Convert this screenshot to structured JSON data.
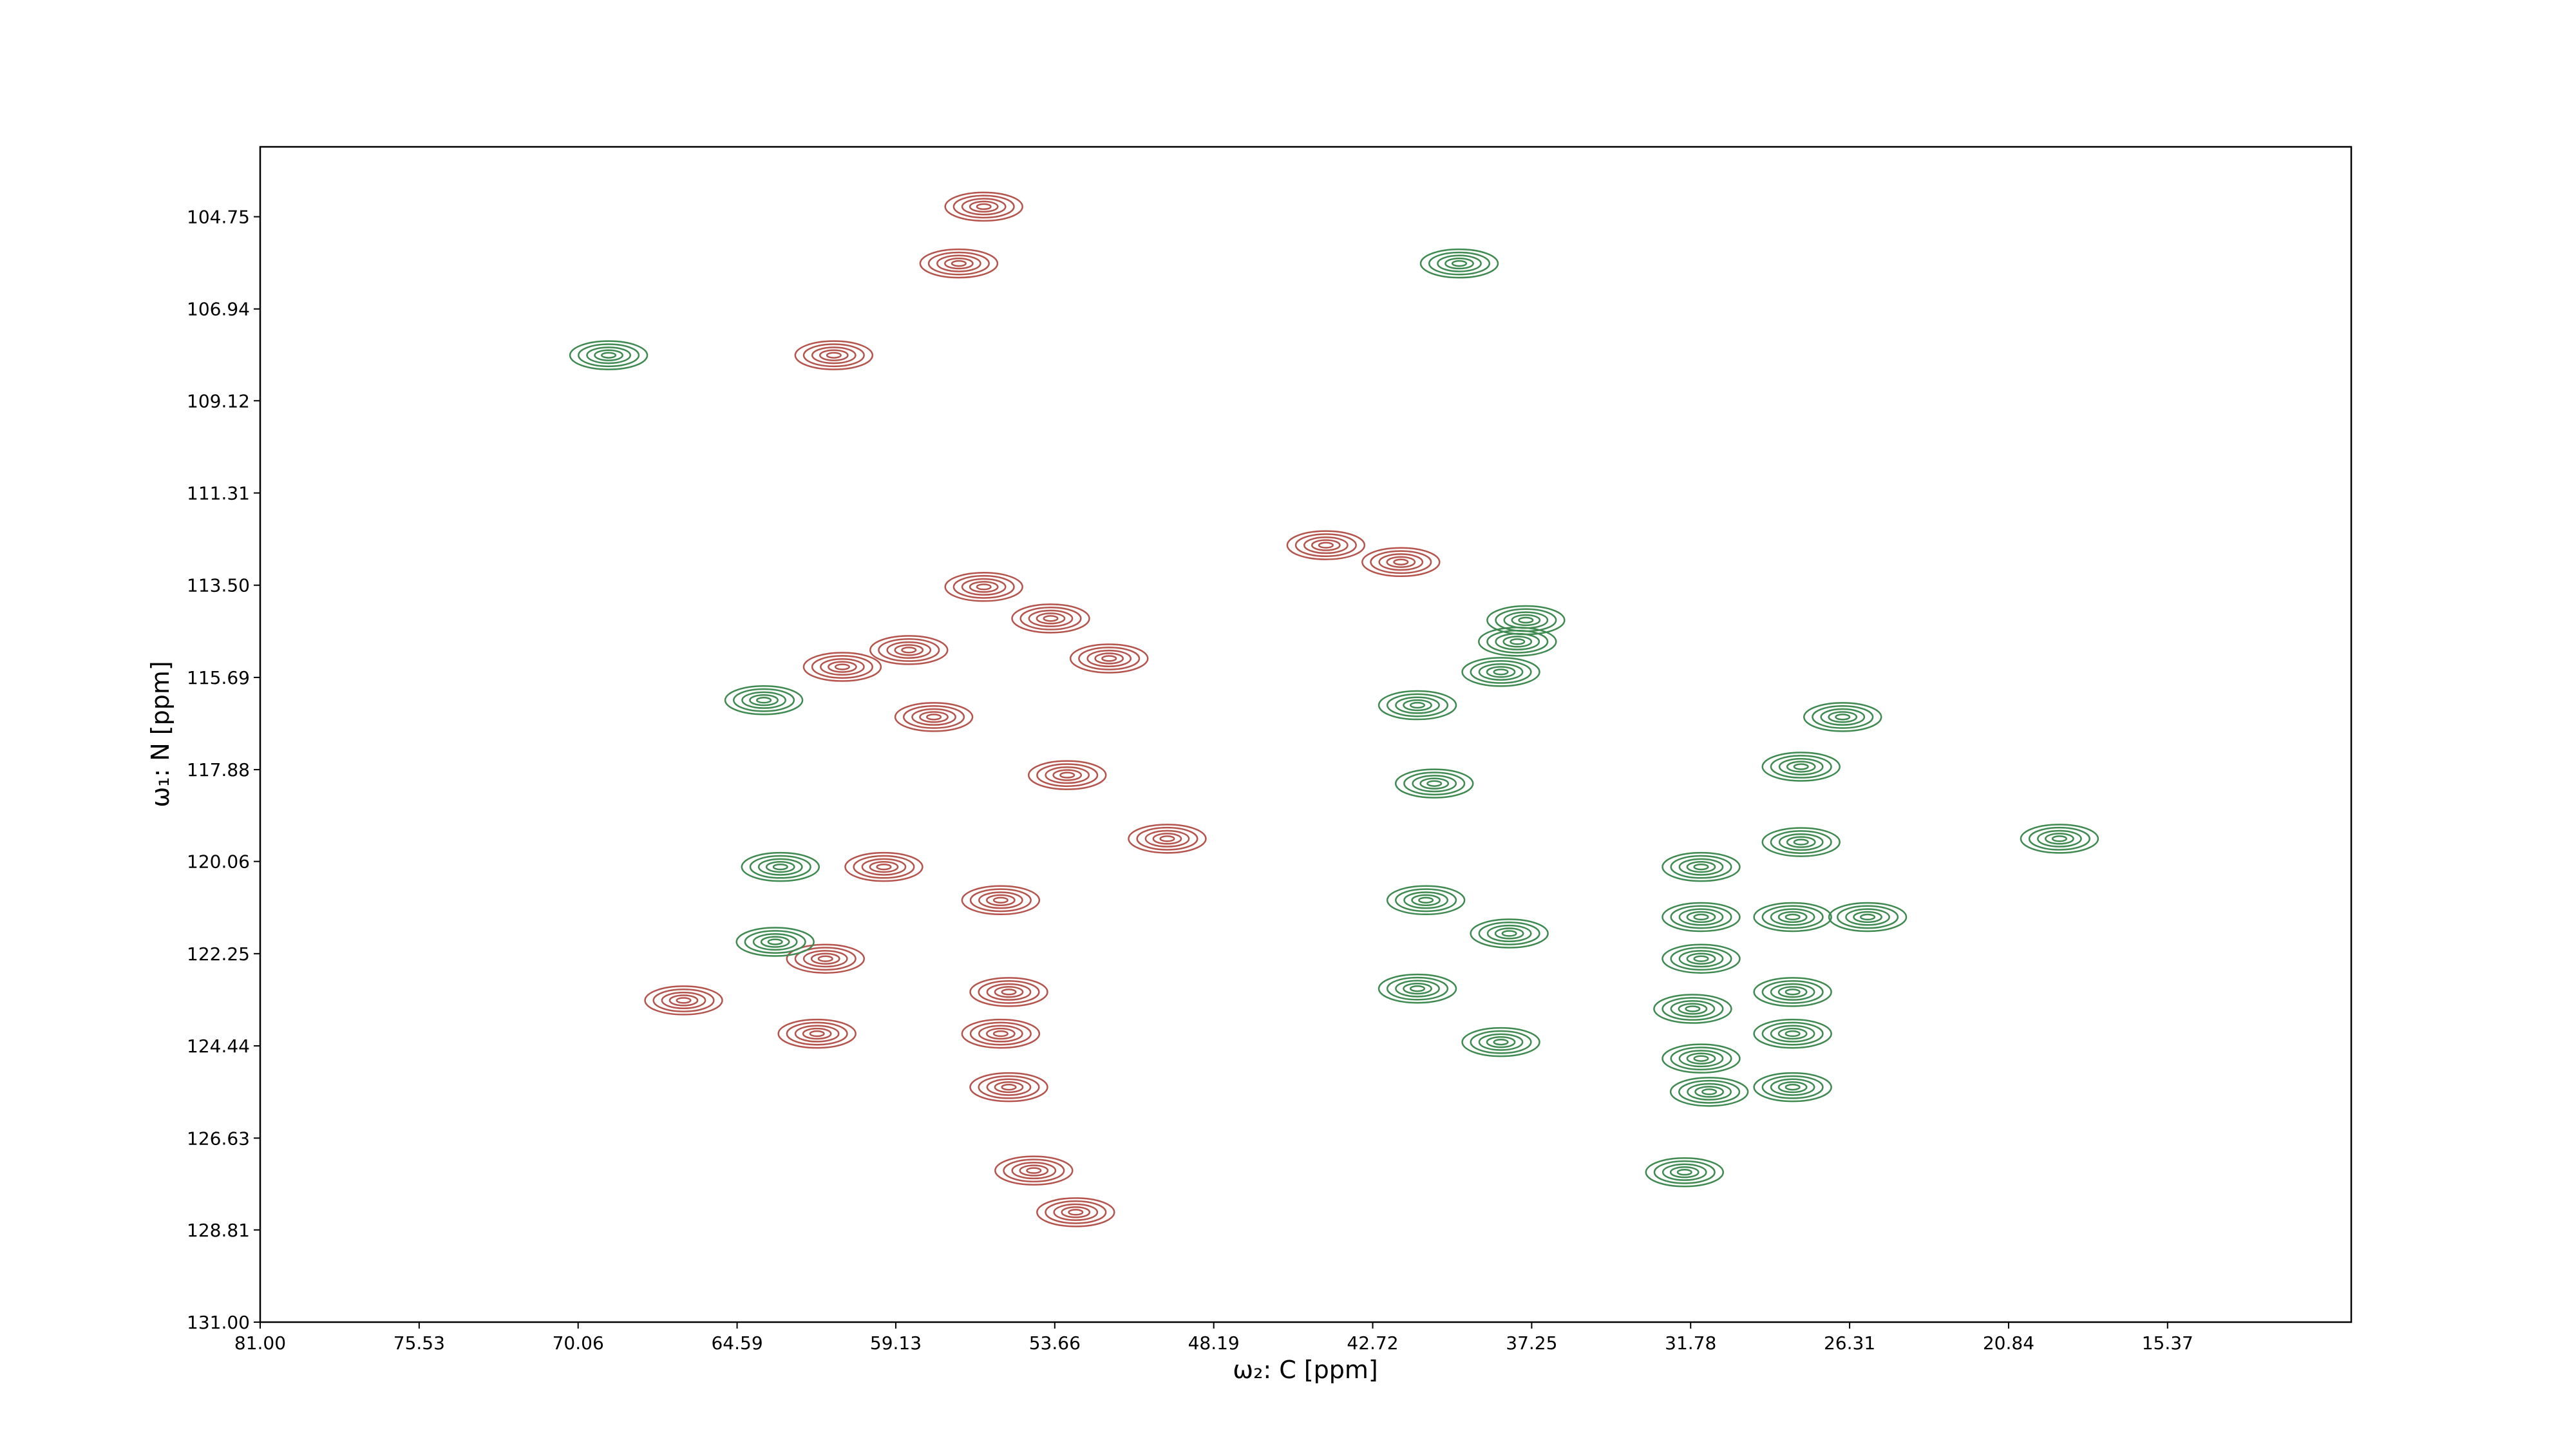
{
  "chart_data": {
    "type": "contour",
    "xlabel": "ω₂: C [ppm]",
    "ylabel": "ω₁: N [ppm]",
    "xlim": [
      81.0,
      9.05
    ],
    "ylim": [
      131.0,
      103.09
    ],
    "xticks": [
      {
        "value": 81.0,
        "label": "81.00"
      },
      75.53,
      70.06,
      64.59,
      59.13,
      53.66,
      48.19,
      42.72,
      37.25,
      31.78,
      26.31,
      20.84,
      15.37
    ],
    "yticks": [
      104.75,
      106.94,
      109.12,
      111.31,
      {
        "value": 113.5,
        "label": "113.50"
      },
      115.69,
      117.88,
      120.06,
      122.25,
      124.44,
      126.63,
      128.81,
      {
        "value": 131,
        "label": "131.00"
      }
    ],
    "series": [
      {
        "color": "#b5544c",
        "x": [
          56.1,
          56.96,
          61.26,
          53.8,
          58.68,
          56.1,
          51.79,
          53.23,
          49.79,
          55.52,
          61.55,
          55.24,
          55.52,
          55.24,
          61.84,
          66.43,
          44.33,
          41.75,
          54.38,
          52.94,
          59.54,
          60.97,
          57.82
        ],
        "y": [
          104.51,
          105.86,
          108.04,
          114.29,
          115.04,
          113.54,
          115.24,
          118.01,
          119.52,
          120.98,
          122.37,
          123.16,
          124.15,
          125.42,
          124.15,
          123.36,
          112.55,
          112.95,
          127.4,
          128.39,
          120.19,
          115.44,
          116.63
        ]
      },
      {
        "color": "#3e8a50",
        "x": [
          69.01,
          63.1,
          63.28,
          41.18,
          40.89,
          37.45,
          37.74,
          38.31,
          41.18,
          40.6,
          38.02,
          31.42,
          31.42,
          31.42,
          31.71,
          31.42,
          31.14,
          28.27,
          28.27,
          28.27,
          28.27,
          27.98,
          27.98,
          26.55,
          25.69,
          19.09,
          38.31,
          39.74,
          63.67,
          31.99
        ],
        "y": [
          108.04,
          120.19,
          121.97,
          123.08,
          120.98,
          114.33,
          114.84,
          115.56,
          116.35,
          118.21,
          121.77,
          120.19,
          121.38,
          122.37,
          123.56,
          124.74,
          125.53,
          121.38,
          123.16,
          124.15,
          125.42,
          119.6,
          117.81,
          116.63,
          121.38,
          119.52,
          124.35,
          105.86,
          116.23,
          127.44
        ]
      }
    ]
  }
}
